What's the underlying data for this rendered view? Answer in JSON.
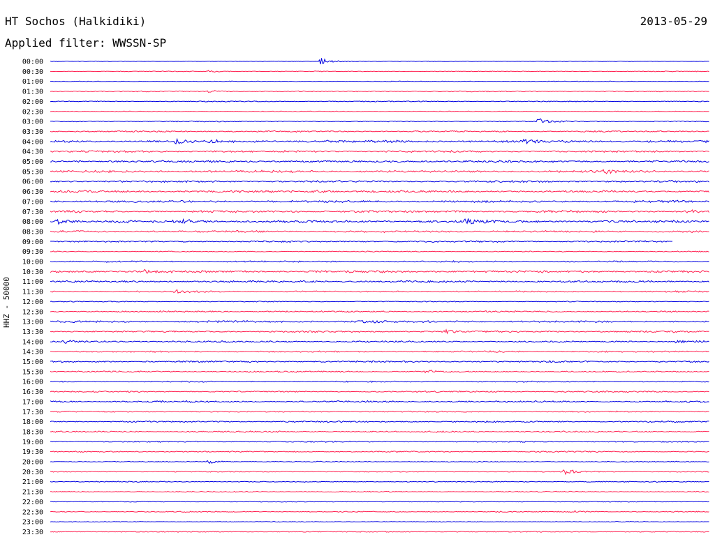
{
  "header": {
    "station": "HT Sochos (Halkidiki)",
    "date": "2013-05-29",
    "filter": "Applied filter: WWSSN-SP"
  },
  "chart_data": {
    "type": "line",
    "title": "HT Sochos (Halkidiki)",
    "ylabel": "HHZ - 50000",
    "row_labels": [
      "00:00",
      "00:30",
      "01:00",
      "01:30",
      "02:00",
      "02:30",
      "03:00",
      "03:30",
      "04:00",
      "04:30",
      "05:00",
      "05:30",
      "06:00",
      "06:30",
      "07:00",
      "07:30",
      "08:00",
      "08:30",
      "09:00",
      "09:30",
      "10:00",
      "10:30",
      "11:00",
      "11:30",
      "12:00",
      "12:30",
      "13:00",
      "13:30",
      "14:00",
      "14:30",
      "15:00",
      "15:30",
      "16:00",
      "16:30",
      "17:00",
      "17:30",
      "18:00",
      "18:30",
      "19:00",
      "19:30",
      "20:00",
      "20:30",
      "21:00",
      "21:30",
      "22:00",
      "22:30",
      "23:00",
      "23:30"
    ],
    "colors": {
      "even_row": "#0000e0",
      "odd_row": "#ff2050",
      "background": "#ffffff"
    },
    "row_noise_level": [
      0.2,
      0.3,
      0.3,
      0.4,
      0.4,
      0.3,
      0.4,
      0.6,
      1.0,
      0.8,
      0.9,
      0.9,
      0.8,
      0.9,
      0.9,
      0.9,
      1.0,
      0.8,
      0.7,
      0.4,
      0.6,
      0.9,
      0.8,
      0.6,
      0.4,
      0.6,
      0.8,
      0.7,
      0.7,
      0.6,
      0.7,
      0.6,
      0.5,
      0.6,
      0.7,
      0.5,
      0.6,
      0.6,
      0.5,
      0.5,
      0.4,
      0.4,
      0.4,
      0.4,
      0.3,
      0.4,
      0.3,
      0.4
    ],
    "events": [
      {
        "row": "00:00",
        "x_fraction": 0.41,
        "amplitude": 5
      },
      {
        "row": "00:30",
        "x_fraction": 0.24,
        "amplitude": 1.5
      },
      {
        "row": "01:30",
        "x_fraction": 0.24,
        "amplitude": 2
      },
      {
        "row": "03:00",
        "x_fraction": 0.74,
        "amplitude": 4
      },
      {
        "row": "04:00",
        "x_fraction": 0.19,
        "amplitude": 3.5
      },
      {
        "row": "04:00",
        "x_fraction": 0.24,
        "amplitude": 2.5
      },
      {
        "row": "04:00",
        "x_fraction": 0.72,
        "amplitude": 2.5
      },
      {
        "row": "05:30",
        "x_fraction": 0.84,
        "amplitude": 3
      },
      {
        "row": "06:30",
        "x_fraction": 0.4,
        "amplitude": 2
      },
      {
        "row": "07:30",
        "x_fraction": 0.96,
        "amplitude": 2.5
      },
      {
        "row": "08:00",
        "x_fraction": 0.01,
        "amplitude": 3.5
      },
      {
        "row": "08:00",
        "x_fraction": 0.2,
        "amplitude": 3
      },
      {
        "row": "08:00",
        "x_fraction": 0.63,
        "amplitude": 4.5
      },
      {
        "row": "10:30",
        "x_fraction": 0.14,
        "amplitude": 2.5
      },
      {
        "row": "11:30",
        "x_fraction": 0.19,
        "amplitude": 2
      },
      {
        "row": "13:00",
        "x_fraction": 0.47,
        "amplitude": 2
      },
      {
        "row": "13:30",
        "x_fraction": 0.6,
        "amplitude": 2
      },
      {
        "row": "14:00",
        "x_fraction": 0.02,
        "amplitude": 2.5
      },
      {
        "row": "14:00",
        "x_fraction": 0.95,
        "amplitude": 2.5
      },
      {
        "row": "15:30",
        "x_fraction": 0.57,
        "amplitude": 2
      },
      {
        "row": "20:00",
        "x_fraction": 0.24,
        "amplitude": 2.5
      },
      {
        "row": "20:30",
        "x_fraction": 0.78,
        "amplitude": 4
      },
      {
        "row": "22:30",
        "x_fraction": 0.79,
        "amplitude": 1.5
      }
    ],
    "gaps": [
      {
        "row": "09:00",
        "start_fraction": 0.945,
        "end_fraction": 1.0
      }
    ]
  }
}
